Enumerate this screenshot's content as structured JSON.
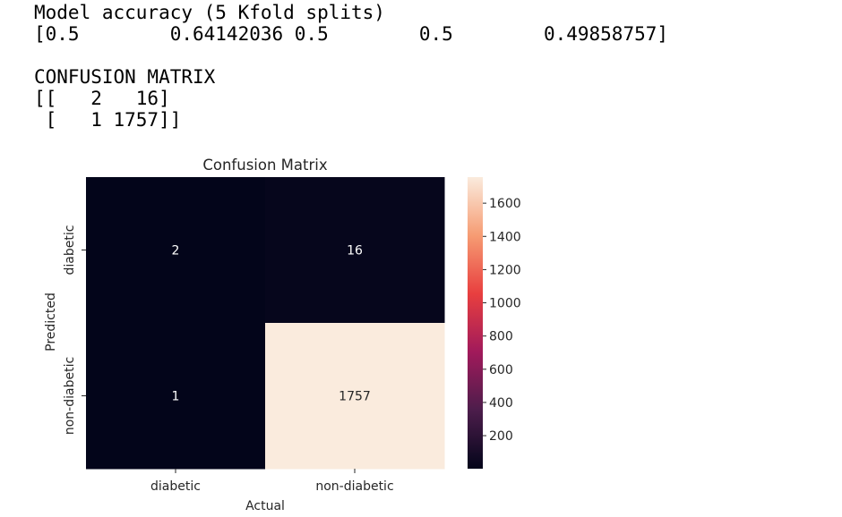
{
  "console": {
    "accuracy_header": "Model accuracy (5 Kfold splits)",
    "accuracy_values": "[0.5        0.64142036 0.5        0.5        0.49858757]",
    "cm_header": "CONFUSION MATRIX",
    "cm_row1": "[[   2   16]",
    "cm_row2": " [   1 1757]]"
  },
  "chart_data": {
    "type": "heatmap",
    "title": "Confusion Matrix",
    "xlabel": "Actual",
    "ylabel": "Predicted",
    "x_categories": [
      "diabetic",
      "non-diabetic"
    ],
    "y_categories": [
      "diabetic",
      "non-diabetic"
    ],
    "values": [
      [
        2,
        16
      ],
      [
        1,
        1757
      ]
    ],
    "value_labels": [
      [
        "2",
        "16"
      ],
      [
        "1",
        "1757"
      ]
    ],
    "colorbar": {
      "min": 1,
      "max": 1757,
      "ticks": [
        200,
        400,
        600,
        800,
        1000,
        1200,
        1400,
        1600
      ],
      "tick_labels": [
        "200",
        "400",
        "600",
        "800",
        "1000",
        "1200",
        "1400",
        "1600"
      ]
    },
    "colormap": "rocket",
    "colormap_stops": [
      "#03051a",
      "#4c1d4b",
      "#a11a5b",
      "#e83f3f",
      "#f69c73",
      "#faebdd"
    ]
  }
}
